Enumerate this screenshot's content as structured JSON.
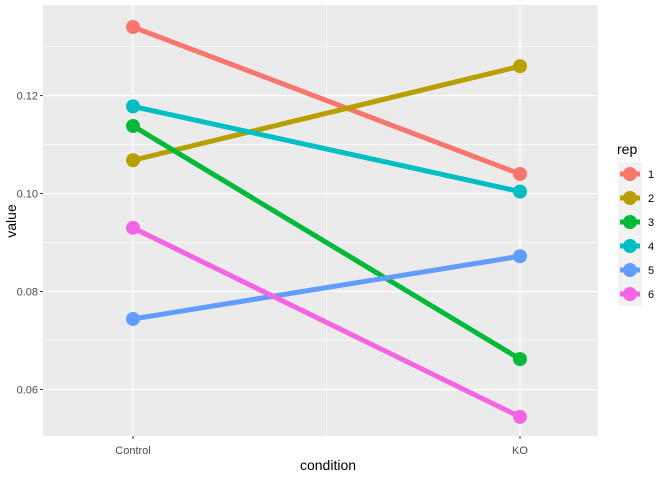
{
  "chart_data": {
    "type": "line",
    "xlabel": "condition",
    "ylabel": "value",
    "categories": [
      "Control",
      "KO"
    ],
    "ylim": [
      0.0505,
      0.1385
    ],
    "yticks": [
      "0.06",
      "0.08",
      "0.10",
      "0.12"
    ],
    "ytick_values": [
      0.06,
      0.08,
      0.1,
      0.12
    ],
    "grid": true,
    "legend_position": "right",
    "legend_title": "rep",
    "background": "#EBEBEB",
    "gridline_color": "#FFFFFF",
    "series": [
      {
        "name": "1",
        "color": "#F8766D",
        "values": [
          0.134,
          0.104
        ]
      },
      {
        "name": "2",
        "color": "#B79F00",
        "values": [
          0.1068,
          0.126
        ]
      },
      {
        "name": "3",
        "color": "#00BA38",
        "values": [
          0.1138,
          0.0662
        ]
      },
      {
        "name": "4",
        "color": "#00BFC4",
        "values": [
          0.1178,
          0.1004
        ]
      },
      {
        "name": "5",
        "color": "#619CFF",
        "values": [
          0.0744,
          0.0872
        ]
      },
      {
        "name": "6",
        "color": "#F564E3",
        "values": [
          0.093,
          0.0544
        ]
      }
    ]
  }
}
